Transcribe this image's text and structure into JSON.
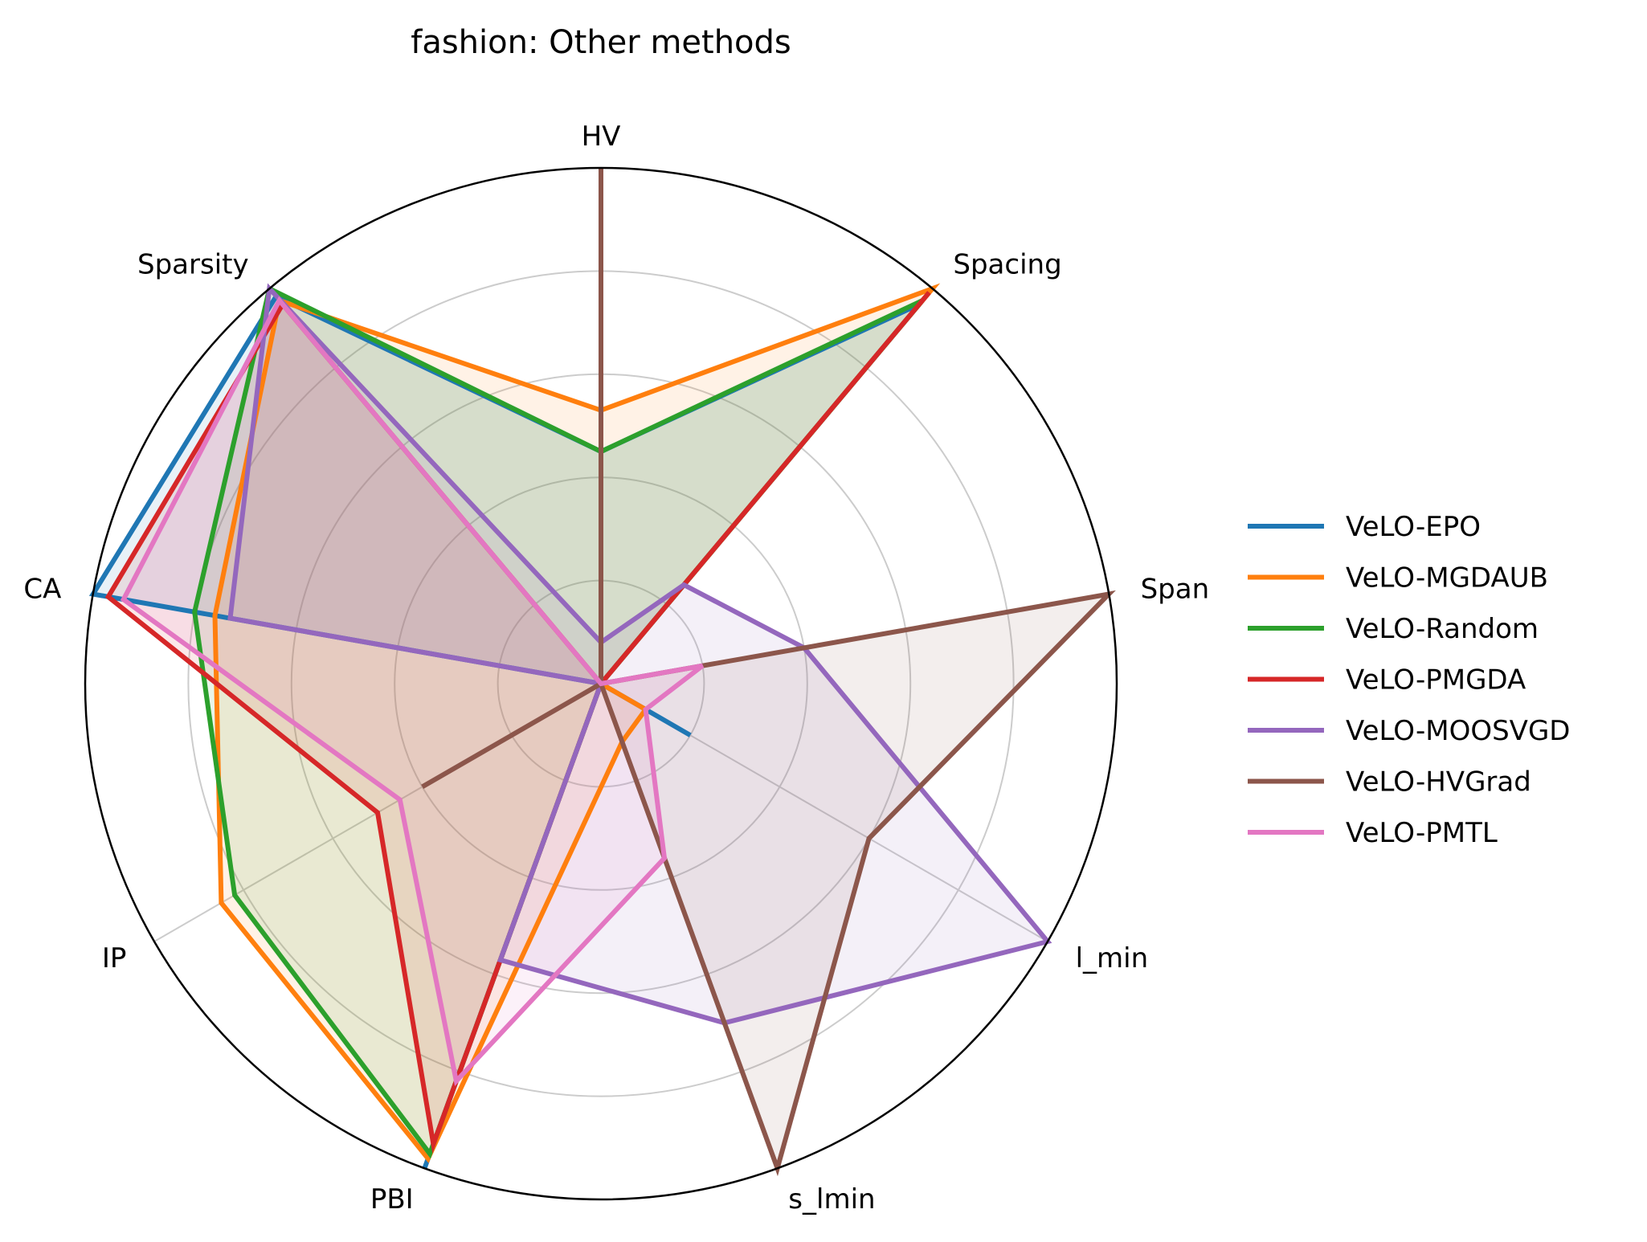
{
  "chart_data": {
    "type": "radar",
    "title": "fashion: Other methods",
    "axes": [
      "HV",
      "Spacing",
      "Span",
      "l_min",
      "s_lmin",
      "PBI",
      "IP",
      "CA",
      "Sparsity"
    ],
    "rlim": [
      0,
      1
    ],
    "grid": true,
    "legend_position": "right",
    "series": [
      {
        "name": "VeLO-EPO",
        "color": "#1f77b4",
        "values": [
          0.45,
          0.96,
          0.0,
          0.2,
          0.0,
          1.0,
          0.0,
          1.0,
          0.98
        ]
      },
      {
        "name": "VeLO-MGDAUB",
        "color": "#ff7f0e",
        "values": [
          0.53,
          1.0,
          0.0,
          0.1,
          0.12,
          0.98,
          0.85,
          0.76,
          0.97
        ]
      },
      {
        "name": "VeLO-Random",
        "color": "#2ca02c",
        "values": [
          0.45,
          0.97,
          0.0,
          0.0,
          0.0,
          0.97,
          0.82,
          0.8,
          1.0
        ]
      },
      {
        "name": "VeLO-PMGDA",
        "color": "#d62728",
        "values": [
          0.0,
          0.99,
          0.0,
          0.0,
          0.0,
          0.95,
          0.5,
          0.97,
          0.96
        ]
      },
      {
        "name": "VeLO-MOOSVGD",
        "color": "#9467bd",
        "values": [
          0.08,
          0.25,
          0.4,
          1.0,
          0.7,
          0.57,
          0.0,
          0.73,
          1.0
        ]
      },
      {
        "name": "VeLO-HVGrad",
        "color": "#8c564b",
        "values": [
          1.0,
          0.0,
          1.0,
          0.6,
          1.0,
          0.0,
          0.4,
          0.0,
          0.0
        ]
      },
      {
        "name": "VeLO-PMTL",
        "color": "#e377c2",
        "values": [
          0.0,
          0.0,
          0.2,
          0.1,
          0.36,
          0.82,
          0.45,
          0.94,
          0.97
        ]
      }
    ]
  }
}
